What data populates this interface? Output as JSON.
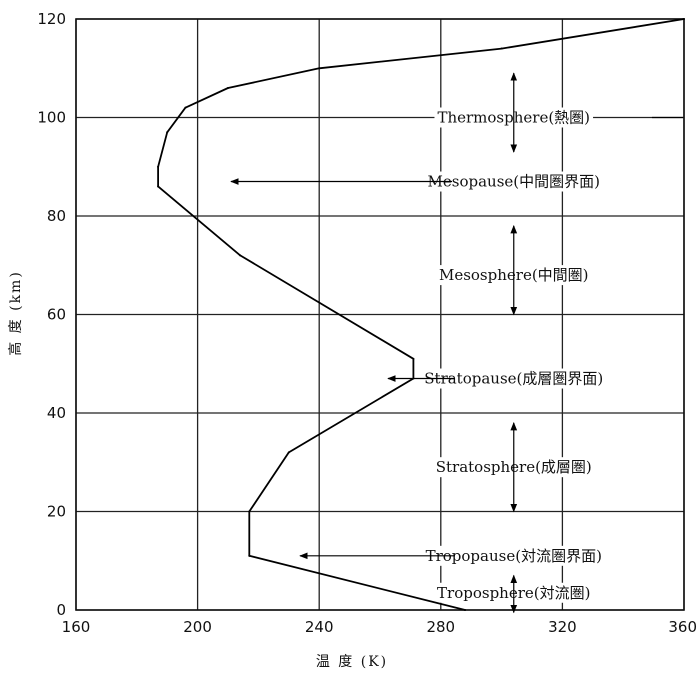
{
  "chart_data": {
    "type": "line",
    "xlabel": "温 度 (K)",
    "ylabel": "高 度 (km)",
    "xlim": [
      160,
      360
    ],
    "ylim": [
      0,
      120
    ],
    "x_ticks": [
      "160",
      "200",
      "240",
      "280",
      "320",
      "360"
    ],
    "y_ticks": [
      "0",
      "20",
      "40",
      "60",
      "80",
      "100",
      "120"
    ],
    "grid": true,
    "series": [
      {
        "points": [
          {
            "x": 288,
            "y": 0
          },
          {
            "x": 217,
            "y": 11
          },
          {
            "x": 217,
            "y": 20
          },
          {
            "x": 230,
            "y": 32
          },
          {
            "x": 271,
            "y": 47
          },
          {
            "x": 271,
            "y": 51
          },
          {
            "x": 214,
            "y": 72
          },
          {
            "x": 187,
            "y": 86
          },
          {
            "x": 187,
            "y": 90
          },
          {
            "x": 190,
            "y": 97
          },
          {
            "x": 196,
            "y": 102
          },
          {
            "x": 210,
            "y": 106
          },
          {
            "x": 240,
            "y": 110
          },
          {
            "x": 300,
            "y": 114
          },
          {
            "x": 360,
            "y": 120
          }
        ]
      }
    ],
    "annotations": [
      {
        "text": "Thermosphere(熱圏)",
        "x": 304,
        "y": 100
      },
      {
        "text": "Mesopause(中間圏界面)",
        "x": 304,
        "y": 87
      },
      {
        "text": "Mesosphere(中間圏)",
        "x": 304,
        "y": 68
      },
      {
        "text": "Stratopause(成層圏界面)",
        "x": 304,
        "y": 47
      },
      {
        "text": "Stratosphere(成層圏)",
        "x": 304,
        "y": 29
      },
      {
        "text": "Tropopause(対流圏界面)",
        "x": 304,
        "y": 11
      },
      {
        "text": "Troposphere(対流圏)",
        "x": 304,
        "y": 3.5
      }
    ]
  }
}
